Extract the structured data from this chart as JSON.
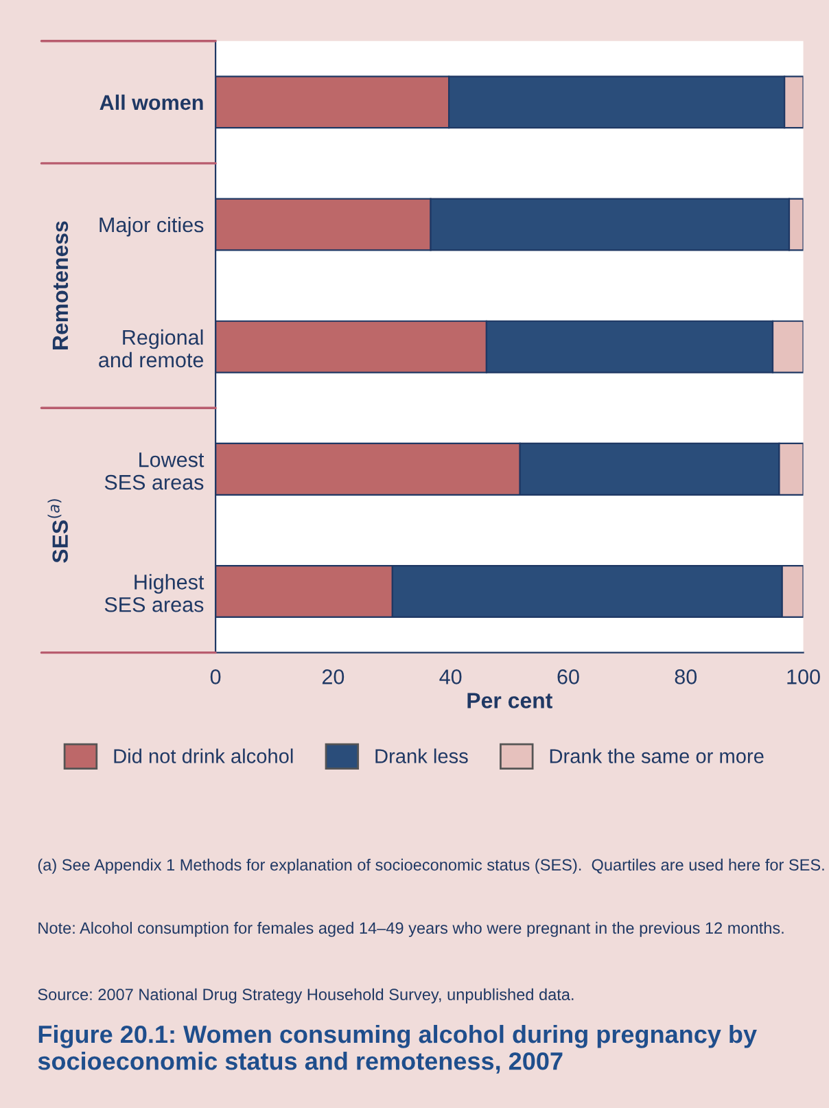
{
  "chart_data": {
    "type": "bar",
    "orientation": "horizontal",
    "stacked": true,
    "title": "Figure 20.1: Women consuming alcohol during pregnancy by socioeconomic status and remoteness, 2007",
    "xlabel": "Per cent",
    "categories": [
      "All women",
      "Major cities",
      "Regional\nand remote",
      "Lowest\nSES areas",
      "Highest\nSES areas"
    ],
    "series": [
      {
        "name": "Did not drink alcohol",
        "color": "#bd6869",
        "values": [
          39.7,
          36.6,
          46.1,
          51.8,
          30.1
        ]
      },
      {
        "name": "Drank less",
        "color": "#2a4d7a",
        "values": [
          57.1,
          61.0,
          48.7,
          44.1,
          66.3
        ]
      },
      {
        "name": "Drank the same or more",
        "color": "#e6c1bd",
        "values": [
          3.2,
          2.4,
          5.2,
          4.1,
          3.6
        ]
      }
    ],
    "xlim": [
      0,
      100
    ],
    "xticks": [
      0,
      20,
      40,
      60,
      80,
      100
    ],
    "legend": "bottom",
    "annotations": [
      "Remoteness",
      "SES$^{(a)}$",
      "(a) See Appendix 1 Methods for explanation of socioeconomic status (SES).  Quartiles are used here for SES.",
      "Note: Alcohol consumption for females aged 14–49 years who were pregnant in the previous 12 months.",
      "Source: 2007 National Drug Strategy Household Survey, unpublished data."
    ]
  }
}
